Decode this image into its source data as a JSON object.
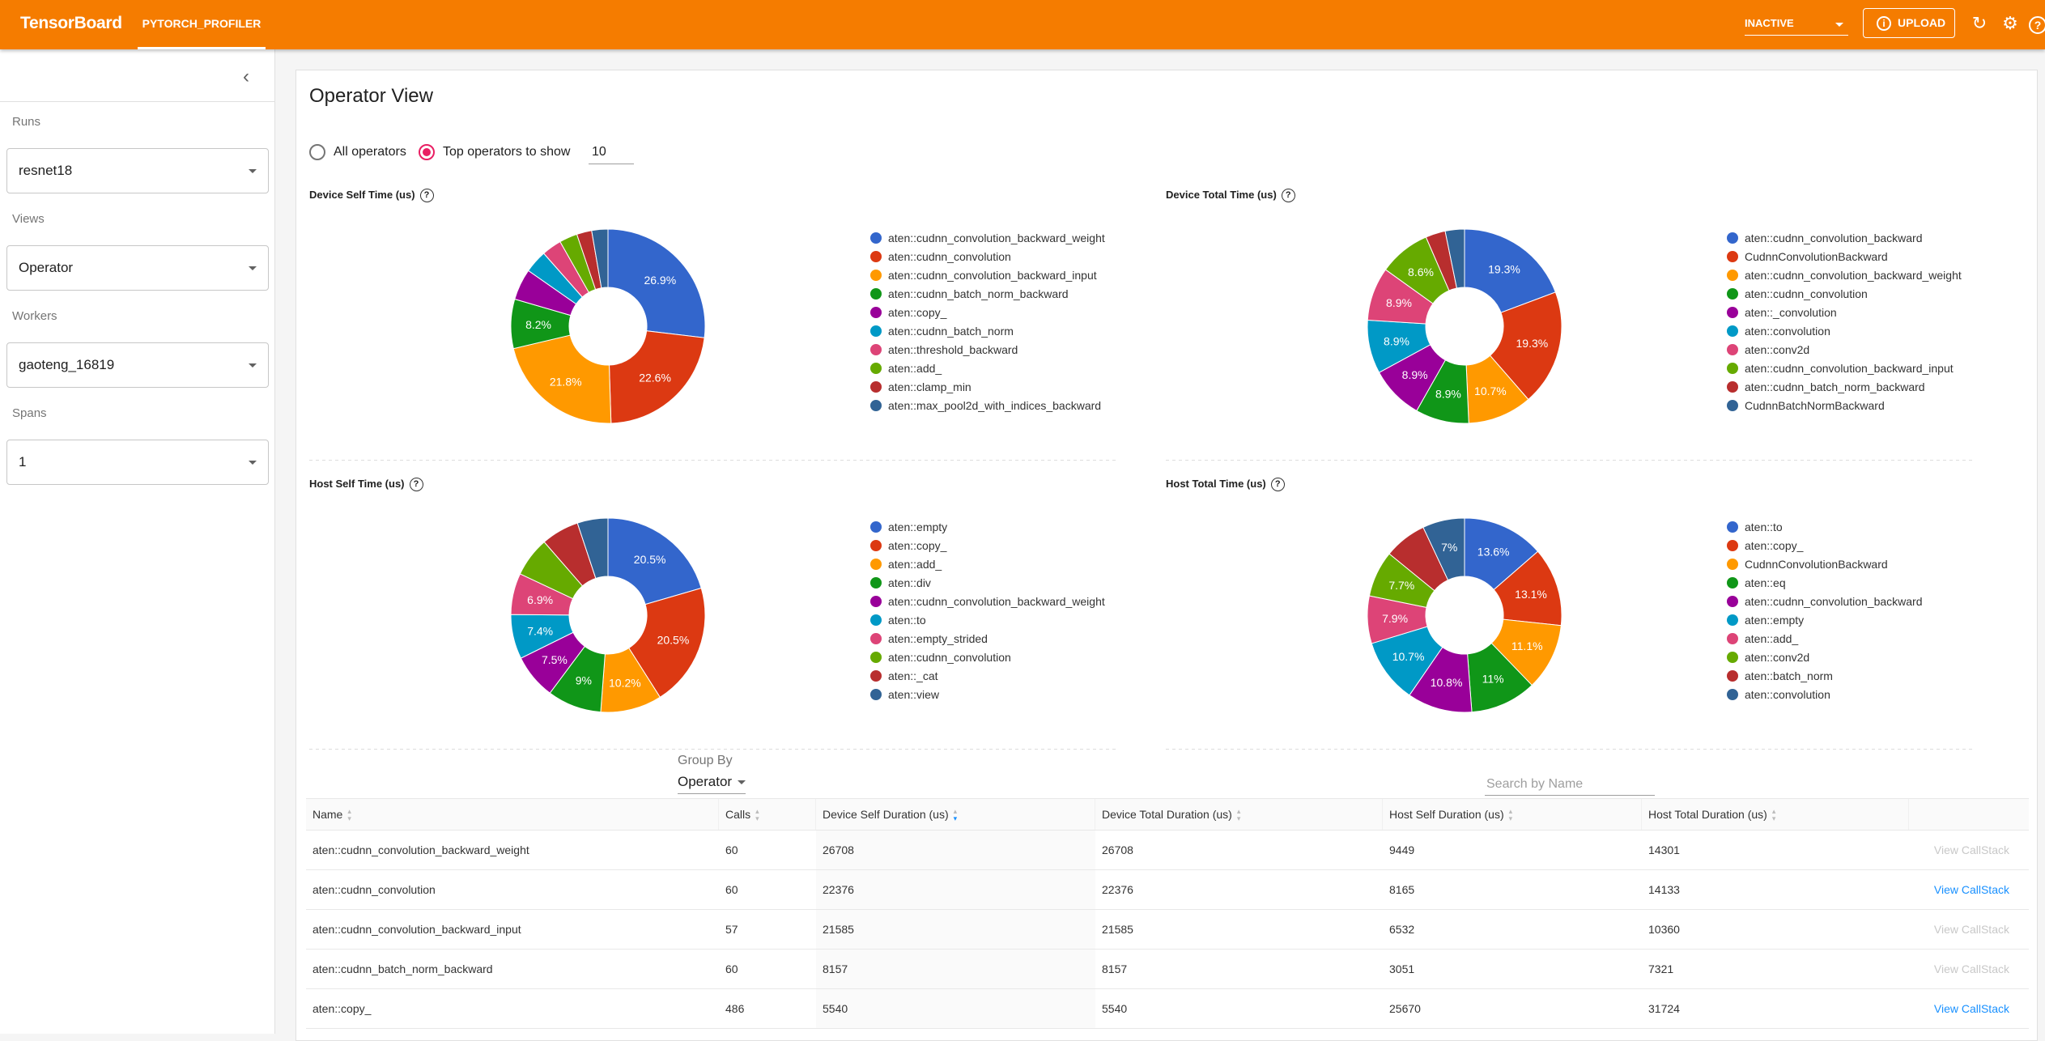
{
  "app": {
    "brand": "TensorBoard",
    "active_tab": "PYTORCH_PROFILER",
    "run_status": "INACTIVE",
    "upload_label": "UPLOAD"
  },
  "sidebar": {
    "runs_label": "Runs",
    "runs_value": "resnet18",
    "views_label": "Views",
    "views_value": "Operator",
    "workers_label": "Workers",
    "workers_value": "gaoteng_16819",
    "spans_label": "Spans",
    "spans_value": "1"
  },
  "main": {
    "title": "Operator View",
    "radio_all": "All operators",
    "radio_top": "Top operators to show",
    "top_n": "10",
    "group_by_label": "Group By",
    "group_by_value": "Operator",
    "search_placeholder": "Search by Name"
  },
  "chart_data": [
    {
      "type": "pie",
      "title": "Device Self Time (us)",
      "categories": [
        "aten::cudnn_convolution_backward_weight",
        "aten::cudnn_convolution",
        "aten::cudnn_convolution_backward_input",
        "aten::cudnn_batch_norm_backward",
        "aten::copy_",
        "aten::cudnn_batch_norm",
        "aten::threshold_backward",
        "aten::add_",
        "aten::clamp_min",
        "aten::max_pool2d_with_indices_backward"
      ],
      "values": [
        26.9,
        22.6,
        21.8,
        8.2,
        5.2,
        3.8,
        3.3,
        3.0,
        2.5,
        2.7
      ],
      "labels": [
        "26.9%",
        "22.6%",
        "21.8%",
        "8.2%",
        "",
        "",
        "",
        "",
        "",
        ""
      ]
    },
    {
      "type": "pie",
      "title": "Device Total Time (us)",
      "categories": [
        "aten::cudnn_convolution_backward",
        "CudnnConvolutionBackward",
        "aten::cudnn_convolution_backward_weight",
        "aten::cudnn_convolution",
        "aten::_convolution",
        "aten::convolution",
        "aten::conv2d",
        "aten::cudnn_convolution_backward_input",
        "aten::cudnn_batch_norm_backward",
        "CudnnBatchNormBackward"
      ],
      "values": [
        19.3,
        19.3,
        10.7,
        8.9,
        8.9,
        8.9,
        8.9,
        8.6,
        3.3,
        3.2
      ],
      "labels": [
        "19.3%",
        "19.3%",
        "10.7%",
        "8.9%",
        "8.9%",
        "8.9%",
        "8.9%",
        "8.6%",
        "",
        ""
      ]
    },
    {
      "type": "pie",
      "title": "Host Self Time (us)",
      "categories": [
        "aten::empty",
        "aten::copy_",
        "aten::add_",
        "aten::div",
        "aten::cudnn_convolution_backward_weight",
        "aten::to",
        "aten::empty_strided",
        "aten::cudnn_convolution",
        "aten::_cat",
        "aten::view"
      ],
      "values": [
        20.5,
        20.5,
        10.2,
        9.0,
        7.5,
        7.4,
        6.9,
        6.6,
        6.3,
        5.1
      ],
      "labels": [
        "20.5%",
        "20.5%",
        "10.2%",
        "9%",
        "7.5%",
        "7.4%",
        "6.9%",
        "",
        "",
        ""
      ]
    },
    {
      "type": "pie",
      "title": "Host Total Time (us)",
      "categories": [
        "aten::to",
        "aten::copy_",
        "CudnnConvolutionBackward",
        "aten::eq",
        "aten::cudnn_convolution_backward",
        "aten::empty",
        "aten::add_",
        "aten::conv2d",
        "aten::batch_norm",
        "aten::convolution"
      ],
      "values": [
        13.6,
        13.1,
        11.1,
        11.0,
        10.8,
        10.7,
        7.9,
        7.7,
        7.1,
        7.0
      ],
      "labels": [
        "13.6%",
        "13.1%",
        "11.1%",
        "11%",
        "10.8%",
        "10.7%",
        "7.9%",
        "7.7%",
        "",
        "7%"
      ]
    }
  ],
  "colors": [
    "#3366cc",
    "#dc3912",
    "#ff9900",
    "#109618",
    "#990099",
    "#0099c6",
    "#dd4477",
    "#66aa00",
    "#b82e2e",
    "#316395"
  ],
  "table": {
    "headers": [
      "Name",
      "Calls",
      "Device Self Duration (us)",
      "Device Total Duration (us)",
      "Host Self Duration (us)",
      "Host Total Duration (us)"
    ],
    "rows": [
      {
        "name": "aten::cudnn_convolution_backward_weight",
        "calls": "60",
        "dself": "26708",
        "dtotal": "26708",
        "hself": "9449",
        "htotal": "14301",
        "link": "View CallStack"
      },
      {
        "name": "aten::cudnn_convolution",
        "calls": "60",
        "dself": "22376",
        "dtotal": "22376",
        "hself": "8165",
        "htotal": "14133",
        "link": "View CallStack"
      },
      {
        "name": "aten::cudnn_convolution_backward_input",
        "calls": "57",
        "dself": "21585",
        "dtotal": "21585",
        "hself": "6532",
        "htotal": "10360",
        "link": "View CallStack"
      },
      {
        "name": "aten::cudnn_batch_norm_backward",
        "calls": "60",
        "dself": "8157",
        "dtotal": "8157",
        "hself": "3051",
        "htotal": "7321",
        "link": "View CallStack"
      },
      {
        "name": "aten::copy_",
        "calls": "486",
        "dself": "5540",
        "dtotal": "5540",
        "hself": "25670",
        "htotal": "31724",
        "link": "View CallStack"
      }
    ]
  }
}
